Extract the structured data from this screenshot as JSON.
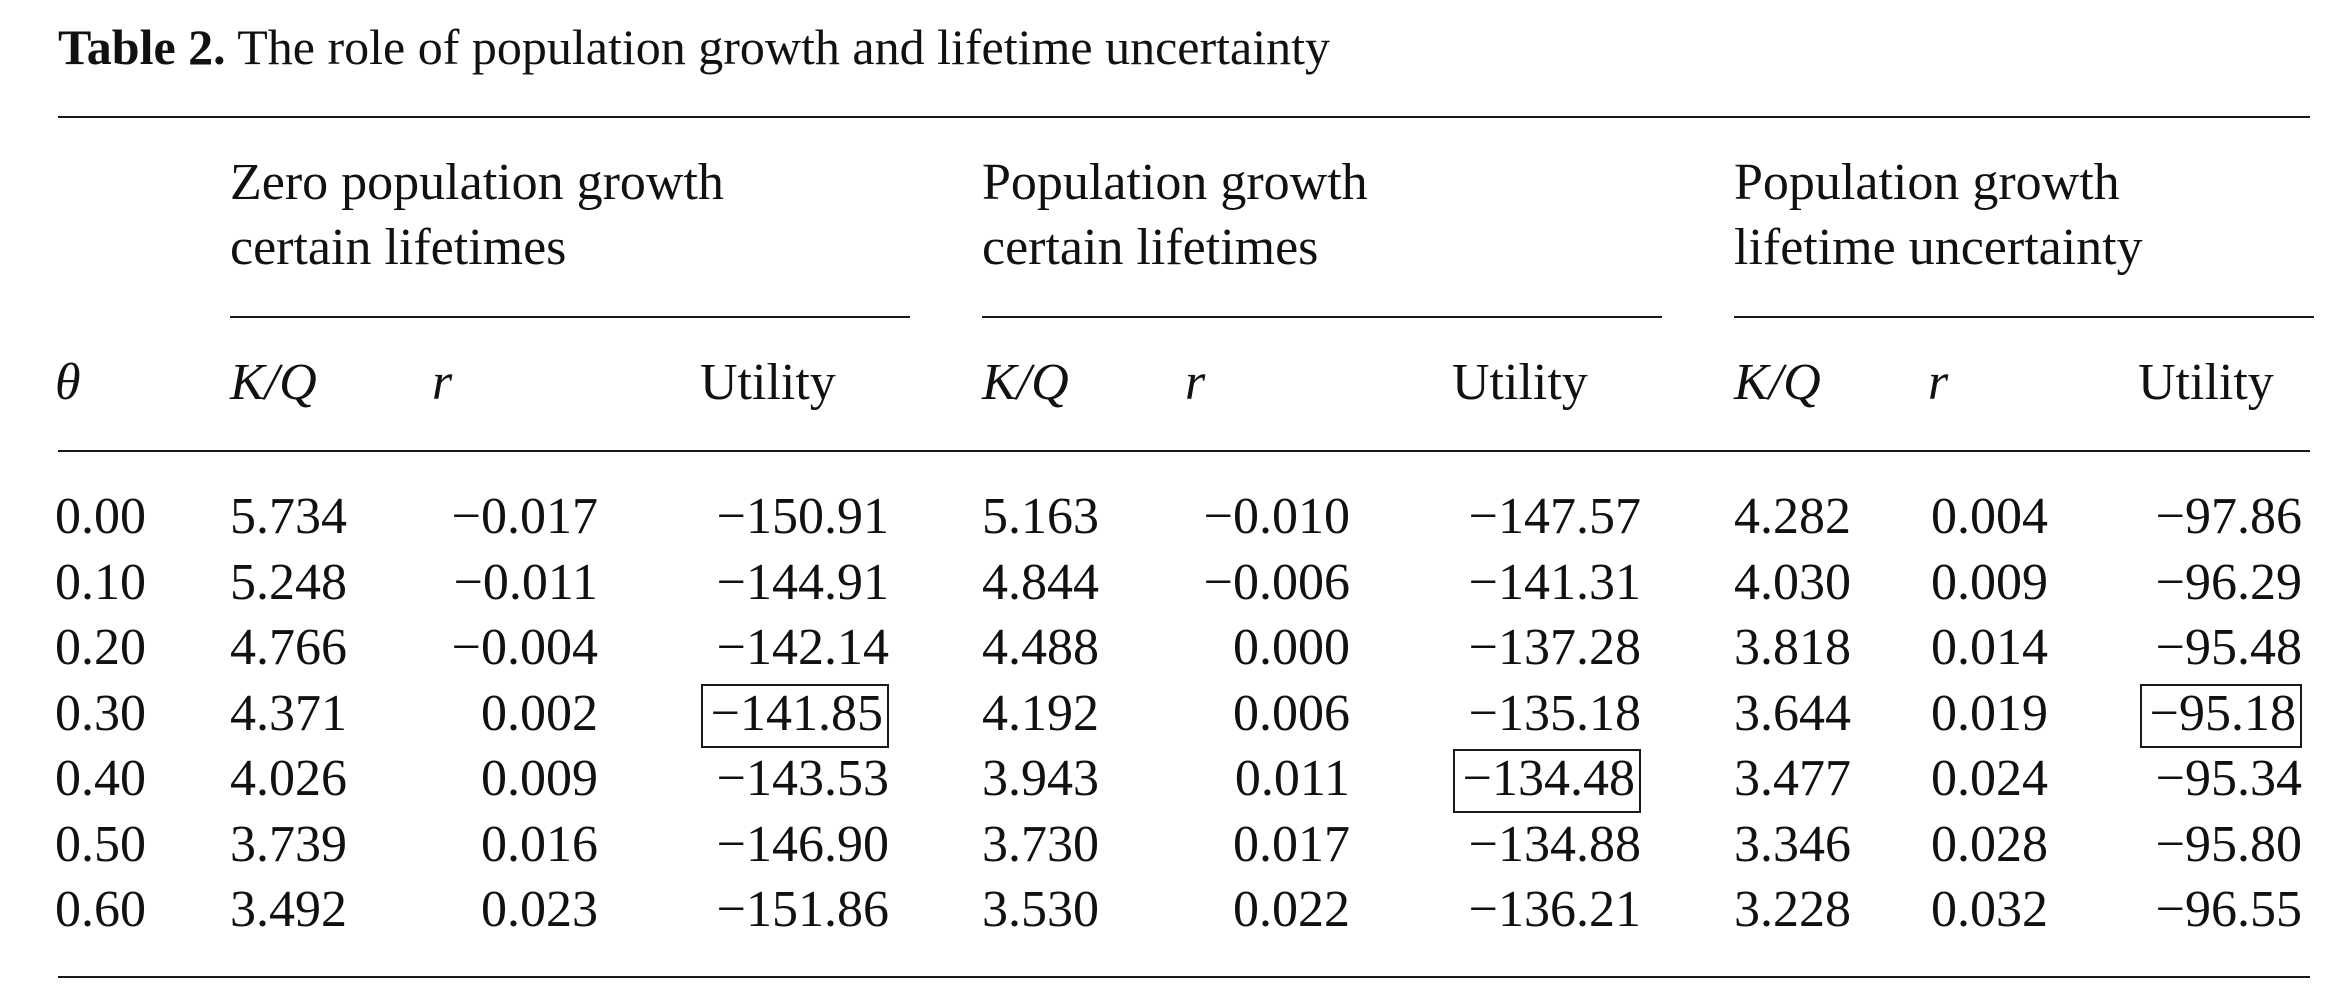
{
  "caption": {
    "label": "Table 2.",
    "title": "The role of population growth and lifetime uncertainty"
  },
  "groups": [
    {
      "line1": "Zero population growth",
      "line2": "certain lifetimes"
    },
    {
      "line1": "Population growth",
      "line2": "certain lifetimes"
    },
    {
      "line1": "Population growth",
      "line2": "lifetime uncertainty"
    }
  ],
  "columns": [
    "θ",
    "K/Q",
    "r",
    "Utility"
  ],
  "rows": [
    {
      "theta": "0.00",
      "cells": [
        [
          "5.734",
          "−0.017",
          "−150.91"
        ],
        [
          "5.163",
          "−0.010",
          "−147.57"
        ],
        [
          "4.282",
          "0.004",
          "−97.86"
        ]
      ]
    },
    {
      "theta": "0.10",
      "cells": [
        [
          "5.248",
          "−0.011",
          "−144.91"
        ],
        [
          "4.844",
          "−0.006",
          "−141.31"
        ],
        [
          "4.030",
          "0.009",
          "−96.29"
        ]
      ]
    },
    {
      "theta": "0.20",
      "cells": [
        [
          "4.766",
          "−0.004",
          "−142.14"
        ],
        [
          "4.488",
          "0.000",
          "−137.28"
        ],
        [
          "3.818",
          "0.014",
          "−95.48"
        ]
      ]
    },
    {
      "theta": "0.30",
      "cells": [
        [
          "4.371",
          "0.002",
          "−141.85"
        ],
        [
          "4.192",
          "0.006",
          "−135.18"
        ],
        [
          "3.644",
          "0.019",
          "−95.18"
        ]
      ]
    },
    {
      "theta": "0.40",
      "cells": [
        [
          "4.026",
          "0.009",
          "−143.53"
        ],
        [
          "3.943",
          "0.011",
          "−134.48"
        ],
        [
          "3.477",
          "0.024",
          "−95.34"
        ]
      ]
    },
    {
      "theta": "0.50",
      "cells": [
        [
          "3.739",
          "0.016",
          "−146.90"
        ],
        [
          "3.730",
          "0.017",
          "−134.88"
        ],
        [
          "3.346",
          "0.028",
          "−95.80"
        ]
      ]
    },
    {
      "theta": "0.60",
      "cells": [
        [
          "3.492",
          "0.023",
          "−151.86"
        ],
        [
          "3.530",
          "0.022",
          "−136.21"
        ],
        [
          "3.228",
          "0.032",
          "−96.55"
        ]
      ]
    }
  ],
  "boxed": [
    {
      "group": 0,
      "row": 3
    },
    {
      "group": 1,
      "row": 4
    },
    {
      "group": 2,
      "row": 3
    }
  ]
}
